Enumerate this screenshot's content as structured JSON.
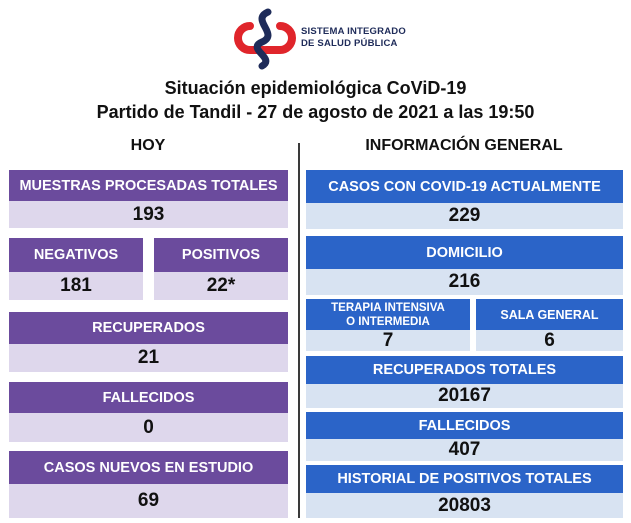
{
  "org": {
    "line1": "SISTEMA INTEGRADO",
    "line2": "DE SALUD PÚBLICA"
  },
  "title": {
    "line1": "Situación epidemiológica CoViD-19",
    "line2": "Partido de Tandil - 27 de agosto de 2021 a las 19:50"
  },
  "hoy": {
    "heading": "HOY",
    "muestras": {
      "label": "MUESTRAS PROCESADAS TOTALES",
      "value": "193"
    },
    "negativos": {
      "label": "NEGATIVOS",
      "value": "181"
    },
    "positivos": {
      "label": "POSITIVOS",
      "value": "22*"
    },
    "recuperados": {
      "label": "RECUPERADOS",
      "value": "21"
    },
    "fallecidos": {
      "label": "FALLECIDOS",
      "value": "0"
    },
    "casos_nuevos": {
      "label": "CASOS NUEVOS EN ESTUDIO",
      "value": "69"
    }
  },
  "general": {
    "heading": "INFORMACIÓN GENERAL",
    "casos_actuales": {
      "label": "CASOS CON COVID-19 ACTUALMENTE",
      "value": "229"
    },
    "domicilio": {
      "label": "DOMICILIO",
      "value": "216"
    },
    "terapia": {
      "label_line1": "TERAPIA INTENSIVA",
      "label_line2": "O INTERMEDIA",
      "value": "7"
    },
    "sala_general": {
      "label": "SALA GENERAL",
      "value": "6"
    },
    "recuperados_totales": {
      "label": "RECUPERADOS TOTALES",
      "value": "20167"
    },
    "fallecidos": {
      "label": "FALLECIDOS",
      "value": "407"
    },
    "historial": {
      "label": "HISTORIAL DE POSITIVOS TOTALES",
      "value": "20803"
    }
  },
  "colors": {
    "purple": "#6b4b9d",
    "purple_light": "#ded7ec",
    "blue": "#2b64c8",
    "blue_light": "#d8e3f2",
    "logo_red": "#e0252b",
    "logo_navy": "#1e2b59"
  }
}
